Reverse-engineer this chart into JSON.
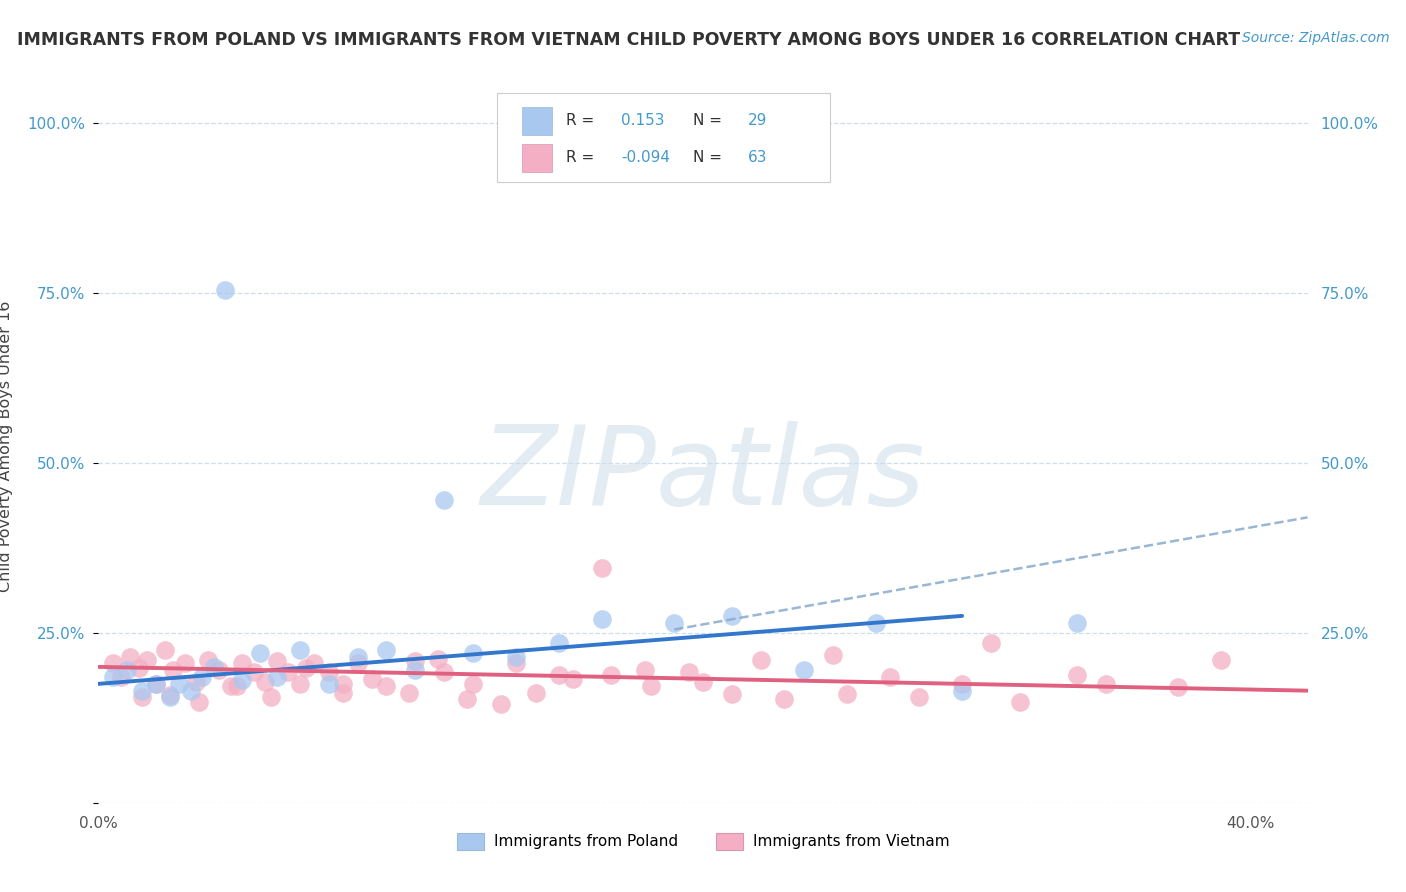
{
  "title": "IMMIGRANTS FROM POLAND VS IMMIGRANTS FROM VIETNAM CHILD POVERTY AMONG BOYS UNDER 16 CORRELATION CHART",
  "source": "Source: ZipAtlas.com",
  "ylabel": "Child Poverty Among Boys Under 16",
  "xlim": [
    0.0,
    0.42
  ],
  "ylim": [
    0.0,
    1.05
  ],
  "poland_R": 0.153,
  "poland_N": 29,
  "vietnam_R": -0.094,
  "vietnam_N": 63,
  "poland_color": "#a8c8f0",
  "vietnam_color": "#f4afc4",
  "poland_line_color": "#3377cc",
  "vietnam_line_color": "#e06080",
  "dash_line_color": "#88aacc",
  "watermark_color": "#ccdde8",
  "background_color": "#ffffff",
  "grid_color": "#ccddee",
  "axis_label_color": "#4499cc",
  "title_color": "#333333",
  "poland_scatter_x": [
    0.005,
    0.01,
    0.015,
    0.02,
    0.025,
    0.028,
    0.032,
    0.036,
    0.04,
    0.044,
    0.05,
    0.056,
    0.062,
    0.07,
    0.08,
    0.09,
    0.1,
    0.11,
    0.12,
    0.13,
    0.145,
    0.16,
    0.175,
    0.2,
    0.22,
    0.245,
    0.27,
    0.3,
    0.34
  ],
  "poland_scatter_y": [
    0.185,
    0.195,
    0.165,
    0.175,
    0.155,
    0.175,
    0.165,
    0.185,
    0.2,
    0.755,
    0.18,
    0.22,
    0.185,
    0.225,
    0.175,
    0.215,
    0.225,
    0.195,
    0.445,
    0.22,
    0.215,
    0.235,
    0.27,
    0.265,
    0.275,
    0.195,
    0.265,
    0.165,
    0.265
  ],
  "vietnam_scatter_x": [
    0.005,
    0.008,
    0.011,
    0.014,
    0.017,
    0.02,
    0.023,
    0.026,
    0.03,
    0.034,
    0.038,
    0.042,
    0.046,
    0.05,
    0.054,
    0.058,
    0.062,
    0.066,
    0.07,
    0.075,
    0.08,
    0.085,
    0.09,
    0.1,
    0.11,
    0.12,
    0.13,
    0.145,
    0.16,
    0.175,
    0.19,
    0.21,
    0.23,
    0.26,
    0.285,
    0.31,
    0.34,
    0.375,
    0.015,
    0.025,
    0.035,
    0.048,
    0.06,
    0.072,
    0.085,
    0.095,
    0.108,
    0.118,
    0.128,
    0.14,
    0.152,
    0.165,
    0.178,
    0.192,
    0.205,
    0.22,
    0.238,
    0.255,
    0.275,
    0.3,
    0.32,
    0.35,
    0.39
  ],
  "vietnam_scatter_y": [
    0.205,
    0.185,
    0.215,
    0.198,
    0.21,
    0.175,
    0.225,
    0.195,
    0.205,
    0.178,
    0.21,
    0.195,
    0.172,
    0.205,
    0.192,
    0.178,
    0.208,
    0.193,
    0.175,
    0.205,
    0.192,
    0.175,
    0.205,
    0.172,
    0.208,
    0.192,
    0.175,
    0.205,
    0.188,
    0.345,
    0.195,
    0.178,
    0.21,
    0.16,
    0.155,
    0.235,
    0.188,
    0.17,
    0.155,
    0.158,
    0.148,
    0.172,
    0.155,
    0.198,
    0.162,
    0.182,
    0.162,
    0.212,
    0.152,
    0.145,
    0.162,
    0.182,
    0.188,
    0.172,
    0.192,
    0.16,
    0.152,
    0.218,
    0.185,
    0.175,
    0.148,
    0.175,
    0.21
  ],
  "poland_line_x0": 0.0,
  "poland_line_y0": 0.175,
  "poland_line_x1": 0.3,
  "poland_line_y1": 0.275,
  "vietnam_line_x0": 0.0,
  "vietnam_line_y0": 0.2,
  "vietnam_line_x1": 0.42,
  "vietnam_line_y1": 0.165,
  "dash_line_x0": 0.2,
  "dash_line_y0": 0.255,
  "dash_line_x1": 0.42,
  "dash_line_y1": 0.42,
  "yticks": [
    0.0,
    0.25,
    0.5,
    0.75,
    1.0
  ],
  "ytick_labels_left": [
    "",
    "25.0%",
    "50.0%",
    "75.0%",
    "100.0%"
  ],
  "ytick_labels_right": [
    "",
    "25.0%",
    "50.0%",
    "75.0%",
    "100.0%"
  ]
}
